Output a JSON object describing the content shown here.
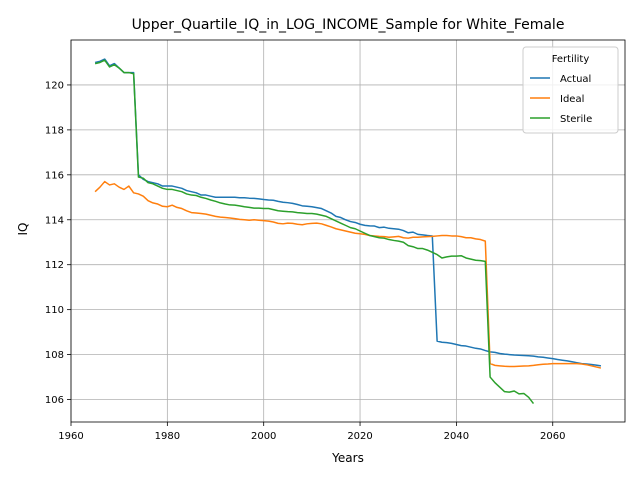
{
  "chart_data": {
    "type": "line",
    "title": "Upper_Quartile_IQ_in_LOG_INCOME_Sample for White_Female",
    "xlabel": "Years",
    "ylabel": "IQ",
    "xlim": [
      1960,
      2075
    ],
    "ylim": [
      105.0,
      122.0
    ],
    "x_ticks": [
      1960,
      1980,
      2000,
      2020,
      2040,
      2060
    ],
    "y_ticks": [
      106,
      108,
      110,
      112,
      114,
      116,
      118,
      120
    ],
    "grid": true,
    "legend": {
      "title": "Fertility",
      "placement": "top-right"
    },
    "series": [
      {
        "name": "Actual",
        "color": "#1f77b4",
        "x": [
          1965,
          1966,
          1967,
          1968,
          1969,
          1970,
          1971,
          1972,
          1973,
          1974,
          1975,
          1976,
          1977,
          1978,
          1979,
          1980,
          1981,
          1982,
          1983,
          1984,
          1985,
          1986,
          1987,
          1988,
          1989,
          1990,
          1991,
          1992,
          1993,
          1994,
          1995,
          1996,
          1997,
          1998,
          1999,
          2000,
          2001,
          2002,
          2003,
          2004,
          2005,
          2006,
          2007,
          2008,
          2009,
          2010,
          2011,
          2012,
          2013,
          2014,
          2015,
          2016,
          2017,
          2018,
          2019,
          2020,
          2021,
          2022,
          2023,
          2024,
          2025,
          2026,
          2027,
          2028,
          2029,
          2030,
          2031,
          2032,
          2033,
          2034,
          2035,
          2036,
          2037,
          2038,
          2039,
          2040,
          2041,
          2042,
          2043,
          2044,
          2045,
          2046,
          2047,
          2048,
          2049,
          2050,
          2051,
          2052,
          2053,
          2054,
          2055,
          2056,
          2057,
          2058,
          2059,
          2060,
          2061,
          2062,
          2063,
          2064,
          2065,
          2066,
          2067,
          2068,
          2069,
          2070
        ],
        "y": [
          121.0,
          121.05,
          121.15,
          120.85,
          120.95,
          120.75,
          120.55,
          120.55,
          120.55,
          116.0,
          115.8,
          115.7,
          115.65,
          115.6,
          115.5,
          115.5,
          115.5,
          115.45,
          115.4,
          115.3,
          115.25,
          115.2,
          115.1,
          115.1,
          115.05,
          115.0,
          115.0,
          115.0,
          115.0,
          115.0,
          114.98,
          114.98,
          114.96,
          114.95,
          114.93,
          114.9,
          114.88,
          114.87,
          114.82,
          114.78,
          114.76,
          114.73,
          114.68,
          114.62,
          114.6,
          114.58,
          114.54,
          114.5,
          114.4,
          114.3,
          114.15,
          114.1,
          114.0,
          113.92,
          113.88,
          113.8,
          113.75,
          113.73,
          113.72,
          113.65,
          113.67,
          113.62,
          113.6,
          113.58,
          113.52,
          113.42,
          113.45,
          113.35,
          113.33,
          113.3,
          113.28,
          108.6,
          108.55,
          108.53,
          108.5,
          108.45,
          108.4,
          108.38,
          108.33,
          108.28,
          108.25,
          108.18,
          108.12,
          108.1,
          108.05,
          108.02,
          108.0,
          107.98,
          107.97,
          107.96,
          107.95,
          107.93,
          107.9,
          107.88,
          107.85,
          107.82,
          107.78,
          107.75,
          107.72,
          107.68,
          107.64,
          107.6,
          107.58,
          107.56,
          107.53,
          107.5
        ]
      },
      {
        "name": "Ideal",
        "color": "#ff7f0e",
        "x": [
          1965,
          1966,
          1967,
          1968,
          1969,
          1970,
          1971,
          1972,
          1973,
          1974,
          1975,
          1976,
          1977,
          1978,
          1979,
          1980,
          1981,
          1982,
          1983,
          1984,
          1985,
          1986,
          1987,
          1988,
          1989,
          1990,
          1991,
          1992,
          1993,
          1994,
          1995,
          1996,
          1997,
          1998,
          1999,
          2000,
          2001,
          2002,
          2003,
          2004,
          2005,
          2006,
          2007,
          2008,
          2009,
          2010,
          2011,
          2012,
          2013,
          2014,
          2015,
          2016,
          2017,
          2018,
          2019,
          2020,
          2021,
          2022,
          2023,
          2024,
          2025,
          2026,
          2027,
          2028,
          2029,
          2030,
          2031,
          2032,
          2033,
          2034,
          2035,
          2036,
          2037,
          2038,
          2039,
          2040,
          2041,
          2042,
          2043,
          2044,
          2045,
          2046,
          2047,
          2048,
          2049,
          2050,
          2051,
          2052,
          2053,
          2054,
          2055,
          2056,
          2057,
          2058,
          2059,
          2060,
          2061,
          2062,
          2063,
          2064,
          2065,
          2066,
          2067,
          2068,
          2069,
          2070
        ],
        "y": [
          115.25,
          115.45,
          115.7,
          115.55,
          115.6,
          115.45,
          115.35,
          115.5,
          115.2,
          115.15,
          115.05,
          114.85,
          114.75,
          114.7,
          114.6,
          114.58,
          114.65,
          114.55,
          114.5,
          114.4,
          114.32,
          114.3,
          114.28,
          114.25,
          114.2,
          114.15,
          114.12,
          114.1,
          114.08,
          114.05,
          114.02,
          114.0,
          113.98,
          114.0,
          113.98,
          113.96,
          113.94,
          113.9,
          113.84,
          113.82,
          113.85,
          113.84,
          113.8,
          113.78,
          113.82,
          113.84,
          113.85,
          113.82,
          113.75,
          113.68,
          113.6,
          113.55,
          113.5,
          113.45,
          113.4,
          113.38,
          113.35,
          113.3,
          113.28,
          113.26,
          113.25,
          113.22,
          113.24,
          113.26,
          113.2,
          113.18,
          113.22,
          113.22,
          113.24,
          113.25,
          113.26,
          113.28,
          113.3,
          113.3,
          113.28,
          113.28,
          113.25,
          113.2,
          113.2,
          113.15,
          113.12,
          113.05,
          107.6,
          107.52,
          107.5,
          107.48,
          107.47,
          107.47,
          107.48,
          107.49,
          107.5,
          107.52,
          107.55,
          107.57,
          107.58,
          107.6,
          107.6,
          107.6,
          107.6,
          107.6,
          107.6,
          107.58,
          107.55,
          107.5,
          107.45,
          107.4
        ]
      },
      {
        "name": "Sterile",
        "color": "#2ca02c",
        "x": [
          1965,
          1966,
          1967,
          1968,
          1969,
          1970,
          1971,
          1972,
          1973,
          1974,
          1975,
          1976,
          1977,
          1978,
          1979,
          1980,
          1981,
          1982,
          1983,
          1984,
          1985,
          1986,
          1987,
          1988,
          1989,
          1990,
          1991,
          1992,
          1993,
          1994,
          1995,
          1996,
          1997,
          1998,
          1999,
          2000,
          2001,
          2002,
          2003,
          2004,
          2005,
          2006,
          2007,
          2008,
          2009,
          2010,
          2011,
          2012,
          2013,
          2014,
          2015,
          2016,
          2017,
          2018,
          2019,
          2020,
          2021,
          2022,
          2023,
          2024,
          2025,
          2026,
          2027,
          2028,
          2029,
          2030,
          2031,
          2032,
          2033,
          2034,
          2035,
          2036,
          2037,
          2038,
          2039,
          2040,
          2041,
          2042,
          2043,
          2044,
          2045,
          2046,
          2047,
          2048,
          2049,
          2050,
          2051,
          2052,
          2053,
          2054,
          2055,
          2056
        ],
        "y": [
          120.95,
          121.0,
          121.1,
          120.8,
          120.9,
          120.75,
          120.55,
          120.55,
          120.5,
          115.9,
          115.85,
          115.65,
          115.6,
          115.5,
          115.4,
          115.35,
          115.35,
          115.3,
          115.25,
          115.15,
          115.1,
          115.08,
          115.0,
          114.95,
          114.88,
          114.82,
          114.75,
          114.7,
          114.66,
          114.65,
          114.62,
          114.58,
          114.55,
          114.52,
          114.52,
          114.5,
          114.5,
          114.45,
          114.4,
          114.38,
          114.36,
          114.35,
          114.32,
          114.3,
          114.28,
          114.28,
          114.25,
          114.2,
          114.15,
          114.05,
          113.95,
          113.85,
          113.75,
          113.65,
          113.6,
          113.5,
          113.4,
          113.3,
          113.25,
          113.2,
          113.18,
          113.12,
          113.08,
          113.05,
          113.0,
          112.85,
          112.8,
          112.72,
          112.72,
          112.65,
          112.55,
          112.45,
          112.3,
          112.35,
          112.38,
          112.38,
          112.4,
          112.3,
          112.25,
          112.2,
          112.18,
          112.15,
          107.0,
          106.75,
          106.55,
          106.35,
          106.33,
          106.38,
          106.25,
          106.27,
          106.1,
          105.82
        ]
      }
    ]
  }
}
